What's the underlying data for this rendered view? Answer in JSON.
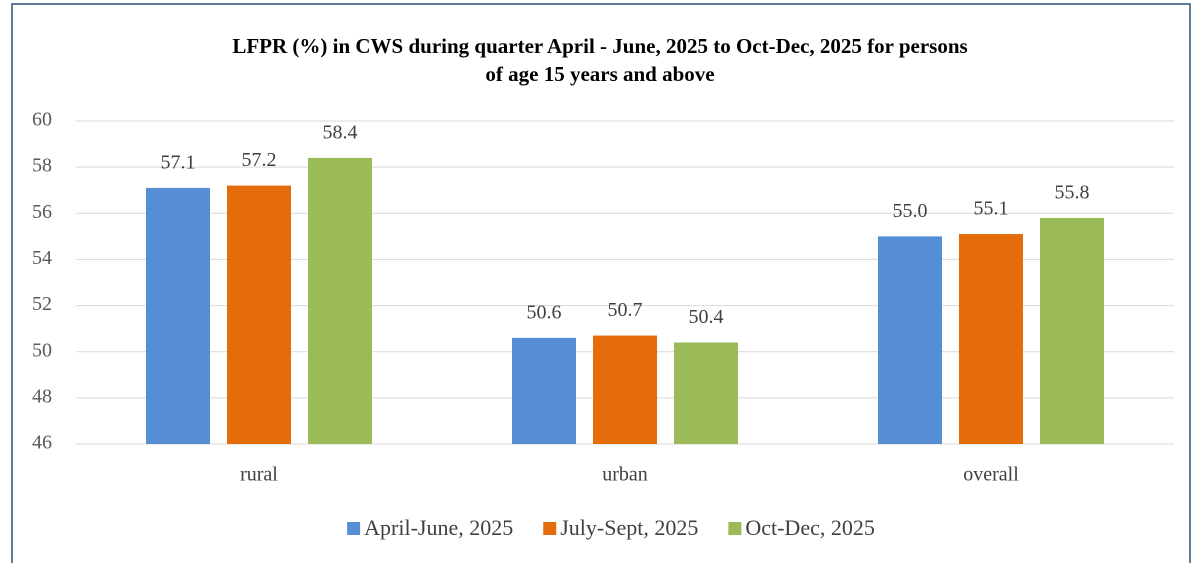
{
  "chart_data": {
    "type": "bar",
    "title": "LFPR (%) in CWS during quarter April - June, 2025 to Oct-Dec, 2025 for persons",
    "subtitle": "of age 15 years and above",
    "categories": [
      "rural",
      "urban",
      "overall"
    ],
    "series": [
      {
        "name": "April-June, 2025",
        "color": "#558ed5",
        "values": [
          57.1,
          50.6,
          55
        ],
        "value_labels": [
          "57.1",
          "50.6",
          "55.0"
        ]
      },
      {
        "name": "July-Sept, 2025",
        "color": "#e46c0a",
        "values": [
          57.2,
          50.7,
          55.1
        ],
        "value_labels": [
          "57.2",
          "50.7",
          "55.1"
        ]
      },
      {
        "name": "Oct-Dec, 2025",
        "color": "#9bbb59",
        "values": [
          58.4,
          50.4,
          55.8
        ],
        "value_labels": [
          "58.4",
          "50.4",
          "55.8"
        ]
      }
    ],
    "ylim": [
      46,
      60
    ],
    "yticks": [
      46,
      48,
      50,
      52,
      54,
      56,
      58,
      60
    ],
    "grid": true,
    "legend": "bottom"
  }
}
